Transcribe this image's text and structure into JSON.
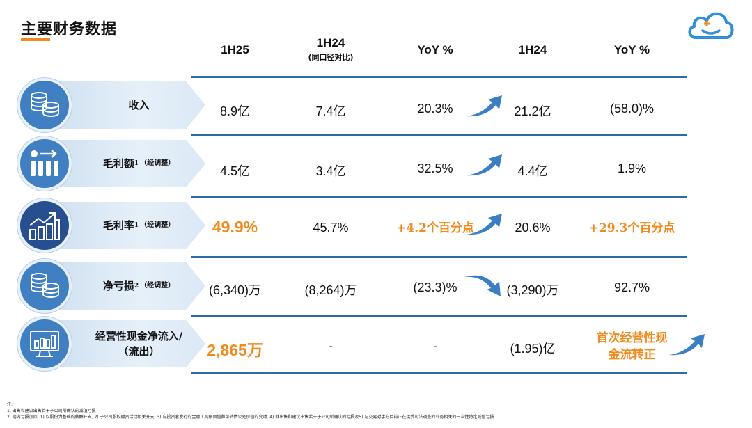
{
  "page": {
    "title": "主要财务数据"
  },
  "headers": {
    "c1": "1H25",
    "c2": "1H24",
    "c2_sub": "(同口径对比)",
    "c3": "YoY %",
    "c4": "1H24",
    "c5": "YoY %"
  },
  "rows": [
    {
      "label": "收入",
      "sup": "",
      "note": "",
      "c1": "8.9亿",
      "c2": "7.4亿",
      "c3": "20.3%",
      "c4": "21.2亿",
      "c5": "(58.0)%",
      "arrow": "up"
    },
    {
      "label": "毛利额",
      "sup": "1",
      "note": "（经调整）",
      "c1": "4.5亿",
      "c2": "3.4亿",
      "c3": "32.5%",
      "c4": "4.4亿",
      "c5": "1.9%",
      "arrow": "up"
    },
    {
      "label": "毛利率",
      "sup": "1",
      "note": "（经调整）",
      "c1": "49.9%",
      "c2": "45.7%",
      "c3": "+4.2个百分点",
      "c4": "20.6%",
      "c5": "+29.3个百分点",
      "arrow": "up"
    },
    {
      "label": "净亏损",
      "sup": "2",
      "note": "（经调整）",
      "c1": "(6,340)万",
      "c2": "(8,264)万",
      "c3": "(23.3)%",
      "c4": "(3,290)万",
      "c5": "92.7%",
      "arrow": "down"
    },
    {
      "label": "经营性现金净流入/",
      "label2": "（流出）",
      "sup": "",
      "note": "",
      "c1": "2,865万",
      "c2": "-",
      "c3": "-",
      "c4": "(1.95)亿",
      "c5_line1": "首次经营性现",
      "c5_line2": "金流转正",
      "arrow": "up"
    }
  ],
  "footnotes": {
    "head": "注:",
    "line1": "1. 出售和建议出售若干子公司所确认的减值亏损",
    "line2": "2. 期内亏损加回: 1) 以股份为基础的薪酬开支, 2) 子公司股权融资活动相关开支, 3) 向投资者发行的金融工具账面值和可转债公允价值的变动, 4) 就出售和建议出售若干子公司所确认的亏损及5) 与交易对手方目前正在接受司法调查的业务相关的一次性特定减值亏损"
  },
  "colors": {
    "accent": "#f08a1c",
    "line": "#2f6aa8",
    "badge": "#3f7fc2",
    "badge_dark": "#274f8f"
  },
  "icons": [
    "coins-icon",
    "bar-people-icon",
    "trend-chart-icon",
    "coins-icon",
    "monitor-chart-icon",
    "cloud-logo"
  ]
}
